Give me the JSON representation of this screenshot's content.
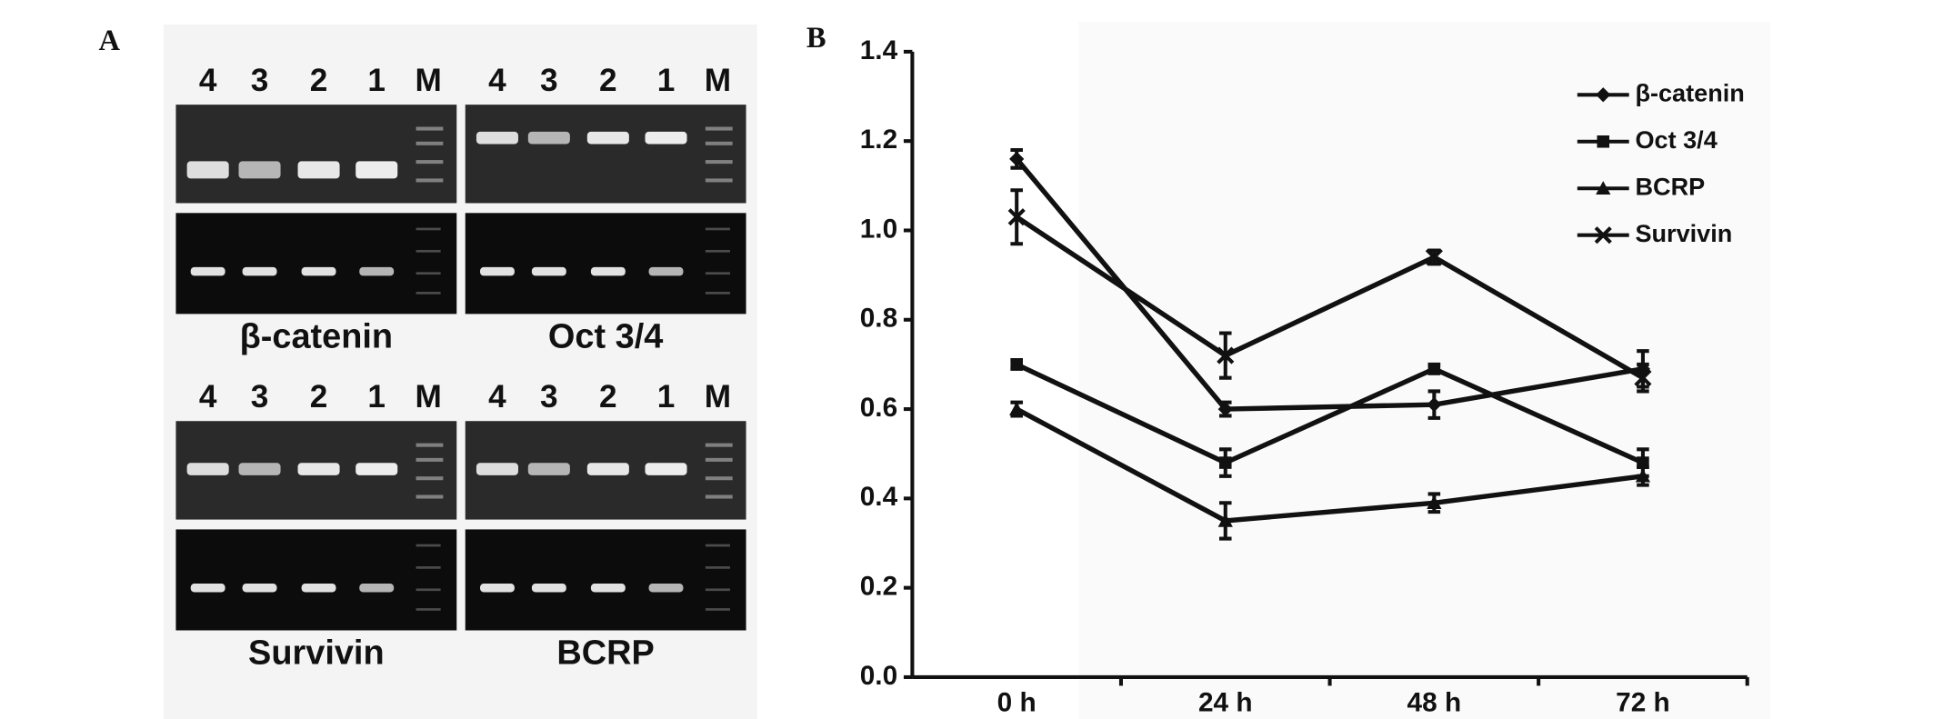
{
  "panel_a": {
    "label": "A",
    "gels": [
      {
        "name": "β-catenin",
        "lanes": [
          "4",
          "3",
          "2",
          "1",
          "M"
        ]
      },
      {
        "name": "Oct 3/4",
        "lanes": [
          "4",
          "3",
          "2",
          "1",
          "M"
        ]
      },
      {
        "name": "Survivin",
        "lanes": [
          "4",
          "3",
          "2",
          "1",
          "M"
        ]
      },
      {
        "name": "BCRP",
        "lanes": [
          "4",
          "3",
          "2",
          "1",
          "M"
        ]
      }
    ]
  },
  "chart_data": {
    "type": "line",
    "panel_label": "B",
    "categories": [
      "0 h",
      "24 h",
      "48 h",
      "72 h"
    ],
    "ylim": [
      0,
      1.4
    ],
    "yticks": [
      {
        "value": 0,
        "label": "0.0"
      },
      0.2,
      0.4,
      0.6,
      0.8,
      {
        "value": 1,
        "label": "1.0"
      },
      1.2,
      1.4
    ],
    "series": [
      {
        "name": "β-catenin",
        "color": "#111111",
        "marker": "diamond",
        "values": [
          1.16,
          0.6,
          0.61,
          0.69
        ],
        "errors": [
          0.02,
          0.015,
          0.03,
          0.04
        ]
      },
      {
        "name": "Oct 3/4",
        "color": "#111111",
        "marker": "square",
        "values": [
          0.7,
          0.48,
          0.69,
          0.48
        ],
        "errors": [
          0.01,
          0.03,
          0.01,
          0.03
        ]
      },
      {
        "name": "BCRP",
        "color": "#111111",
        "marker": "triangle",
        "values": [
          0.6,
          0.35,
          0.39,
          0.45
        ],
        "errors": [
          0.015,
          0.04,
          0.02,
          0.02
        ]
      },
      {
        "name": "Survivin",
        "color": "#111111",
        "marker": "x",
        "values": [
          1.03,
          0.72,
          0.94,
          0.67
        ],
        "errors": [
          0.06,
          0.05,
          0.015,
          0.03
        ]
      }
    ],
    "legend": "top-right"
  }
}
